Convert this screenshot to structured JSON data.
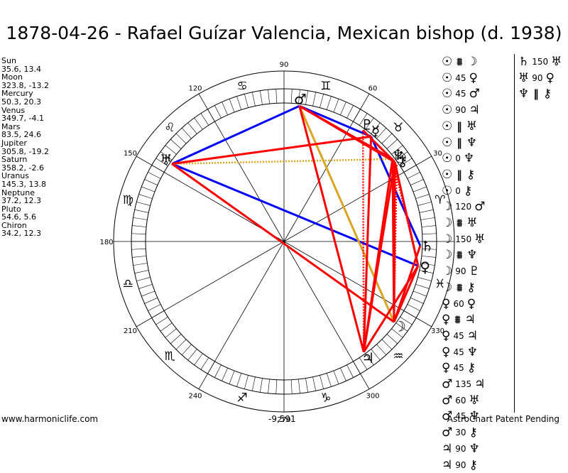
{
  "title": "1878-04-26 - Rafael Guízar Valencia, Mexican bishop (d. 1938)",
  "planets": [
    {
      "name": "Sun",
      "coords": "35.6, 13.4"
    },
    {
      "name": "Moon",
      "coords": "323.8, -13.2"
    },
    {
      "name": "Mercury",
      "coords": "50.3, 20.3"
    },
    {
      "name": "Venus",
      "coords": "349.7, -4.1"
    },
    {
      "name": "Mars",
      "coords": "83.5, 24.6"
    },
    {
      "name": "Jupiter",
      "coords": "305.8, -19.2"
    },
    {
      "name": "Saturn",
      "coords": "358.2, -2.6"
    },
    {
      "name": "Uranus",
      "coords": "145.3, 13.8"
    },
    {
      "name": "Neptune",
      "coords": "37.2, 12.3"
    },
    {
      "name": "Pluto",
      "coords": "54.6, 5.6"
    },
    {
      "name": "Chiron",
      "coords": "34.2, 12.3"
    }
  ],
  "wheel": {
    "degree_labels": [
      {
        "label": "90",
        "deg": 90
      },
      {
        "label": "60",
        "deg": 60
      },
      {
        "label": "30",
        "deg": 30
      },
      {
        "label": "120",
        "deg": 120
      },
      {
        "label": "150",
        "deg": 150
      },
      {
        "label": "180",
        "deg": 180
      },
      {
        "label": "210",
        "deg": 210
      },
      {
        "label": "240",
        "deg": 240
      },
      {
        "label": "270",
        "deg": 270
      },
      {
        "label": "300",
        "deg": 300
      },
      {
        "label": "330",
        "deg": 330
      }
    ],
    "zodiac_glyphs": [
      {
        "glyph": "♈",
        "deg": 15
      },
      {
        "glyph": "♉",
        "deg": 45
      },
      {
        "glyph": "♊",
        "deg": 75
      },
      {
        "glyph": "♋",
        "deg": 105
      },
      {
        "glyph": "♌",
        "deg": 135
      },
      {
        "glyph": "♍",
        "deg": 165
      },
      {
        "glyph": "♎",
        "deg": 195
      },
      {
        "glyph": "♏",
        "deg": 225
      },
      {
        "glyph": "♐",
        "deg": 255
      },
      {
        "glyph": "♑",
        "deg": 285
      },
      {
        "glyph": "♒",
        "deg": 315
      },
      {
        "glyph": "♓",
        "deg": 345
      }
    ],
    "planet_glyphs": [
      {
        "glyph": "☉",
        "deg": 35.6
      },
      {
        "glyph": "☽",
        "deg": 323.8
      },
      {
        "glyph": "☿",
        "deg": 50.3
      },
      {
        "glyph": "♀",
        "deg": 349.7
      },
      {
        "glyph": "♂",
        "deg": 83.5
      },
      {
        "glyph": "♃",
        "deg": 305.8
      },
      {
        "glyph": "♄",
        "deg": 358.2
      },
      {
        "glyph": "♅",
        "deg": 145.3
      },
      {
        "glyph": "♆",
        "deg": 37.2
      },
      {
        "glyph": "♇",
        "deg": 54.6
      },
      {
        "glyph": "⚷",
        "deg": 34.2
      }
    ],
    "aspect_lines": [
      {
        "from": 83.5,
        "to": 145.3,
        "color": "#0000ff",
        "style": "solid"
      },
      {
        "from": 83.5,
        "to": 50.3,
        "color": "#0000ff",
        "style": "solid"
      },
      {
        "from": 145.3,
        "to": 349.7,
        "color": "#0000ff",
        "style": "solid"
      },
      {
        "from": 50.3,
        "to": 358.2,
        "color": "#0000ff",
        "style": "solid"
      },
      {
        "from": 145.3,
        "to": 37.2,
        "color": "#daa520",
        "style": "dotted"
      },
      {
        "from": 83.5,
        "to": 323.8,
        "color": "#daa520",
        "style": "solid"
      },
      {
        "from": 145.3,
        "to": 50.3,
        "color": "#ff0000",
        "style": "solid"
      },
      {
        "from": 145.3,
        "to": 323.8,
        "color": "#ff0000",
        "style": "solid"
      },
      {
        "from": 145.3,
        "to": 323.8,
        "color": "#ff0000",
        "style": "dotted"
      },
      {
        "from": 83.5,
        "to": 37.2,
        "color": "#ff0000",
        "style": "solid"
      },
      {
        "from": 83.5,
        "to": 35.6,
        "color": "#ff0000",
        "style": "solid"
      },
      {
        "from": 83.5,
        "to": 305.8,
        "color": "#ff0000",
        "style": "solid"
      },
      {
        "from": 50.3,
        "to": 305.8,
        "color": "#ff0000",
        "style": "solid"
      },
      {
        "from": 50.3,
        "to": 305.8,
        "color": "#ff0000",
        "style": "dotted"
      },
      {
        "from": 35.6,
        "to": 305.8,
        "color": "#ff0000",
        "style": "solid"
      },
      {
        "from": 37.2,
        "to": 305.8,
        "color": "#ff0000",
        "style": "solid"
      },
      {
        "from": 35.6,
        "to": 323.8,
        "color": "#ff0000",
        "style": "solid"
      },
      {
        "from": 37.2,
        "to": 323.8,
        "color": "#ff0000",
        "style": "solid"
      },
      {
        "from": 34.2,
        "to": 323.8,
        "color": "#ff0000",
        "style": "dotted"
      },
      {
        "from": 35.6,
        "to": 349.7,
        "color": "#ff0000",
        "style": "solid"
      },
      {
        "from": 37.2,
        "to": 349.7,
        "color": "#ff0000",
        "style": "dotted"
      },
      {
        "from": 54.6,
        "to": 305.8,
        "color": "#ff0000",
        "style": "dotted"
      },
      {
        "from": 349.7,
        "to": 305.8,
        "color": "#ff0000",
        "style": "solid"
      },
      {
        "from": 349.7,
        "to": 323.8,
        "color": "#ff0000",
        "style": "solid"
      },
      {
        "from": 358.2,
        "to": 323.8,
        "color": "#ff0000",
        "style": "solid"
      },
      {
        "from": 35.6,
        "to": 54.6,
        "color": "#ff0000",
        "style": "solid"
      }
    ]
  },
  "aspects_col1": [
    {
      "p1": "☉",
      "asp": "⩩",
      "p2": "☽"
    },
    {
      "p1": "☉",
      "asp": "45",
      "p2": "♀"
    },
    {
      "p1": "☉",
      "asp": "45",
      "p2": "♂"
    },
    {
      "p1": "☉",
      "asp": "90",
      "p2": "♃"
    },
    {
      "p1": "☉",
      "asp": "‖",
      "p2": "♅"
    },
    {
      "p1": "☉",
      "asp": "‖",
      "p2": "♆"
    },
    {
      "p1": "☉",
      "asp": "0",
      "p2": "♆"
    },
    {
      "p1": "☉",
      "asp": "‖",
      "p2": "⚷"
    },
    {
      "p1": "☉",
      "asp": "0",
      "p2": "⚷"
    },
    {
      "p1": "☽",
      "asp": "120",
      "p2": "♂"
    },
    {
      "p1": "☽",
      "asp": "⩩",
      "p2": "♅"
    },
    {
      "p1": "☽",
      "asp": "150",
      "p2": "♅"
    },
    {
      "p1": "☽",
      "asp": "⩩",
      "p2": "♆"
    },
    {
      "p1": "☽",
      "asp": "90",
      "p2": "♇"
    },
    {
      "p1": "☽",
      "asp": "⩩",
      "p2": "⚷"
    },
    {
      "p1": "♀",
      "asp": "60",
      "p2": "♀"
    },
    {
      "p1": "♀",
      "asp": "⩩",
      "p2": "♃"
    },
    {
      "p1": "♀",
      "asp": "45",
      "p2": "♃"
    },
    {
      "p1": "♀",
      "asp": "45",
      "p2": "♆"
    },
    {
      "p1": "♀",
      "asp": "45",
      "p2": "⚷"
    },
    {
      "p1": "♂",
      "asp": "135",
      "p2": "♃"
    },
    {
      "p1": "♂",
      "asp": "60",
      "p2": "♅"
    },
    {
      "p1": "♂",
      "asp": "45",
      "p2": "♆"
    },
    {
      "p1": "♂",
      "asp": "30",
      "p2": "⚷"
    },
    {
      "p1": "♃",
      "asp": "90",
      "p2": "♆"
    },
    {
      "p1": "♃",
      "asp": "90",
      "p2": "⚷"
    }
  ],
  "aspects_col2": [
    {
      "p1": "♄",
      "asp": "150",
      "p2": "♅"
    },
    {
      "p1": "♅",
      "asp": "90",
      "p2": "♀"
    },
    {
      "p1": "♆",
      "asp": "‖",
      "p2": "⚷"
    }
  ],
  "footer": {
    "site": "www.harmoniclife.com",
    "center": "-9,591",
    "right": "AstroChart Patent Pending"
  }
}
